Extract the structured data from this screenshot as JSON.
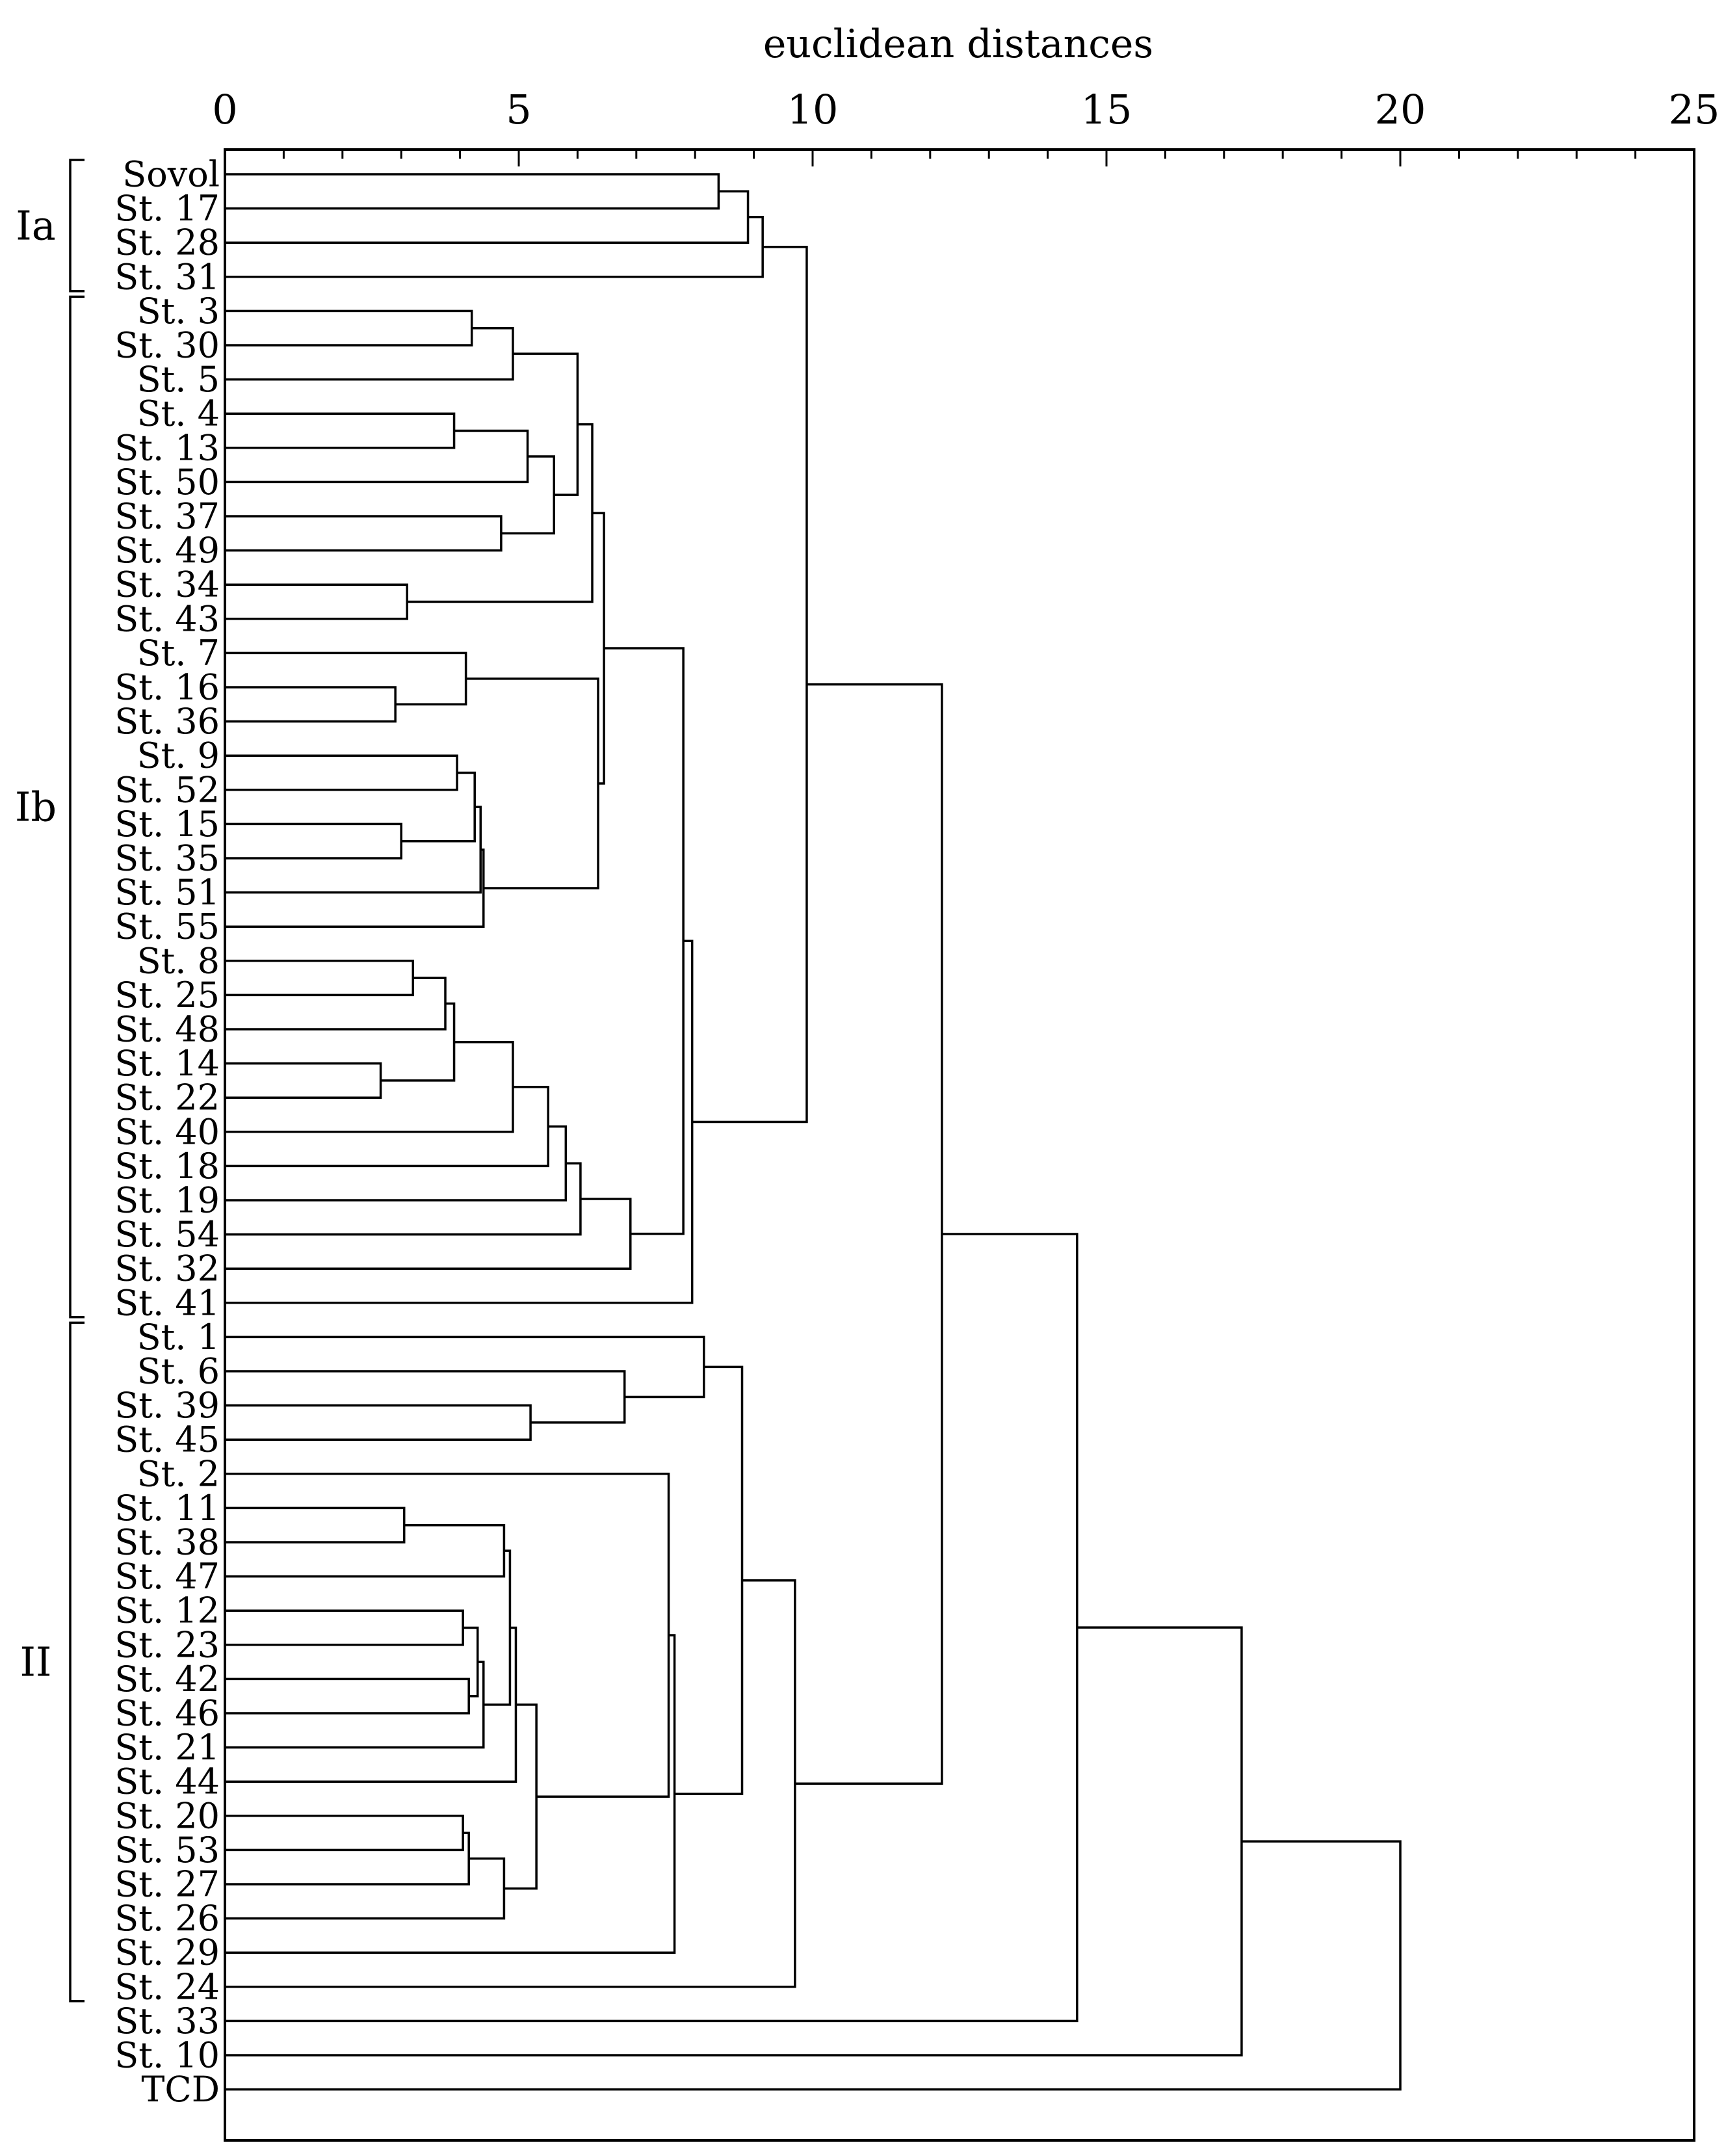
{
  "chart_data": {
    "type": "dendrogram",
    "title": "",
    "xlabel": "euclidean distances",
    "ylabel": "",
    "xlim": [
      0,
      25
    ],
    "x_ticks": [
      0,
      5,
      10,
      15,
      20,
      25
    ],
    "x_tick_labels": [
      "0",
      "5",
      "10",
      "15",
      "20",
      "25"
    ],
    "minor_tick_step": 1,
    "leaves": [
      "Sovol",
      "St. 17",
      "St. 28",
      "St. 31",
      "St. 3",
      "St. 30",
      "St. 5",
      "St. 4",
      "St. 13",
      "St. 50",
      "St. 37",
      "St. 49",
      "St. 34",
      "St. 43",
      "St. 7",
      "St. 16",
      "St. 36",
      "St. 9",
      "St. 52",
      "St. 15",
      "St. 35",
      "St. 51",
      "St. 55",
      "St. 8",
      "St. 25",
      "St. 48",
      "St. 14",
      "St. 22",
      "St. 40",
      "St. 18",
      "St. 19",
      "St. 54",
      "St. 32",
      "St. 41",
      "St. 1",
      "St. 6",
      "St. 39",
      "St. 45",
      "St. 2",
      "St. 11",
      "St. 38",
      "St. 47",
      "St. 12",
      "St. 23",
      "St. 42",
      "St. 46",
      "St. 21",
      "St. 44",
      "St. 20",
      "St. 53",
      "St. 27",
      "St. 26",
      "St. 29",
      "St. 24",
      "St. 33",
      "St. 10",
      "TCD"
    ],
    "groups": [
      {
        "label": "Ia",
        "first_leaf": 0,
        "last_leaf": 3
      },
      {
        "label": "Ib",
        "first_leaf": 4,
        "last_leaf": 33
      },
      {
        "label": "II",
        "first_leaf": 34,
        "last_leaf": 53
      }
    ],
    "merges": [
      {
        "left": 0,
        "right": 1,
        "height": 8.4
      },
      {
        "left": 57,
        "right": 2,
        "height": 8.9
      },
      {
        "left": 58,
        "right": 3,
        "height": 9.15
      },
      {
        "left": 4,
        "right": 5,
        "height": 4.2
      },
      {
        "left": 60,
        "right": 6,
        "height": 4.9
      },
      {
        "left": 7,
        "right": 8,
        "height": 3.9
      },
      {
        "left": 62,
        "right": 9,
        "height": 5.15
      },
      {
        "left": 10,
        "right": 11,
        "height": 4.7
      },
      {
        "left": 63,
        "right": 64,
        "height": 5.6
      },
      {
        "left": 61,
        "right": 65,
        "height": 6.0
      },
      {
        "left": 12,
        "right": 13,
        "height": 3.1
      },
      {
        "left": 66,
        "right": 67,
        "height": 6.25
      },
      {
        "left": 15,
        "right": 16,
        "height": 2.9
      },
      {
        "left": 14,
        "right": 69,
        "height": 4.1
      },
      {
        "left": 17,
        "right": 18,
        "height": 3.95
      },
      {
        "left": 19,
        "right": 20,
        "height": 3.0
      },
      {
        "left": 71,
        "right": 72,
        "height": 4.25
      },
      {
        "left": 73,
        "right": 21,
        "height": 4.35
      },
      {
        "left": 74,
        "right": 22,
        "height": 4.4
      },
      {
        "left": 70,
        "right": 75,
        "height": 6.35
      },
      {
        "left": 68,
        "right": 76,
        "height": 6.45
      },
      {
        "left": 23,
        "right": 24,
        "height": 3.2
      },
      {
        "left": 78,
        "right": 25,
        "height": 3.75
      },
      {
        "left": 26,
        "right": 27,
        "height": 2.65
      },
      {
        "left": 79,
        "right": 80,
        "height": 3.9
      },
      {
        "left": 81,
        "right": 28,
        "height": 4.9
      },
      {
        "left": 82,
        "right": 29,
        "height": 5.5
      },
      {
        "left": 83,
        "right": 30,
        "height": 5.8
      },
      {
        "left": 84,
        "right": 31,
        "height": 6.05
      },
      {
        "left": 85,
        "right": 32,
        "height": 6.9
      },
      {
        "left": 77,
        "right": 86,
        "height": 7.8
      },
      {
        "left": 87,
        "right": 33,
        "height": 7.95
      },
      {
        "left": 59,
        "right": 88,
        "height": 9.9
      },
      {
        "left": 36,
        "right": 37,
        "height": 5.2
      },
      {
        "left": 35,
        "right": 90,
        "height": 6.8
      },
      {
        "left": 34,
        "right": 91,
        "height": 8.15
      },
      {
        "left": 39,
        "right": 40,
        "height": 3.05
      },
      {
        "left": 93,
        "right": 41,
        "height": 4.75
      },
      {
        "left": 42,
        "right": 43,
        "height": 4.05
      },
      {
        "left": 44,
        "right": 45,
        "height": 4.15
      },
      {
        "left": 95,
        "right": 96,
        "height": 4.3
      },
      {
        "left": 97,
        "right": 46,
        "height": 4.4
      },
      {
        "left": 94,
        "right": 98,
        "height": 4.85
      },
      {
        "left": 99,
        "right": 47,
        "height": 4.95
      },
      {
        "left": 48,
        "right": 49,
        "height": 4.05
      },
      {
        "left": 101,
        "right": 50,
        "height": 4.15
      },
      {
        "left": 102,
        "right": 51,
        "height": 4.75
      },
      {
        "left": 100,
        "right": 103,
        "height": 5.3
      },
      {
        "left": 38,
        "right": 104,
        "height": 7.55
      },
      {
        "left": 105,
        "right": 52,
        "height": 7.65
      },
      {
        "left": 92,
        "right": 106,
        "height": 8.8
      },
      {
        "left": 107,
        "right": 53,
        "height": 9.7
      },
      {
        "left": 89,
        "right": 108,
        "height": 12.2
      },
      {
        "left": 109,
        "right": 54,
        "height": 14.5
      },
      {
        "left": 110,
        "right": 55,
        "height": 17.3
      },
      {
        "left": 111,
        "right": 56,
        "height": 20.0
      }
    ],
    "colors": {
      "line": "#000000",
      "text": "#000000",
      "background": "#ffffff"
    }
  }
}
